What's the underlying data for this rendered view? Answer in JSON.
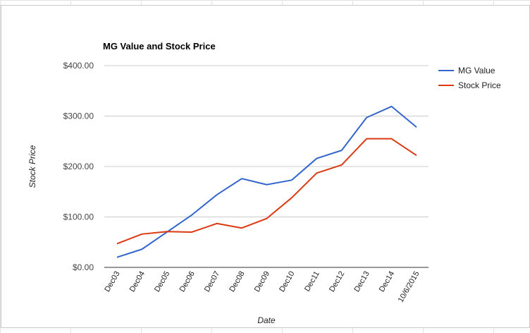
{
  "chart_data": {
    "type": "line",
    "title": "MG Value and Stock Price",
    "xlabel": "Date",
    "ylabel": "Stock Price",
    "categories": [
      "Dec03",
      "Dec04",
      "Dec05",
      "Dec06",
      "Dec07",
      "Dec08",
      "Dec09",
      "Dec10",
      "Dec11",
      "Dec12",
      "Dec13",
      "Dec14",
      "10/6/2015"
    ],
    "ylim": [
      0,
      400
    ],
    "yticks": [
      0,
      100,
      200,
      300,
      400
    ],
    "ytick_labels": [
      "$0.00",
      "$100.00",
      "$200.00",
      "$300.00",
      "$400.00"
    ],
    "grid": true,
    "legend_position": "right",
    "series": [
      {
        "name": "MG Value",
        "color": "#3366cc",
        "values": [
          20,
          36,
          70,
          104,
          144,
          176,
          164,
          173,
          216,
          232,
          297,
          319,
          278
        ]
      },
      {
        "name": "Stock Price",
        "color": "#dc3912",
        "values": [
          47,
          66,
          71,
          70,
          87,
          78,
          97,
          138,
          187,
          203,
          255,
          255,
          222
        ]
      }
    ]
  }
}
